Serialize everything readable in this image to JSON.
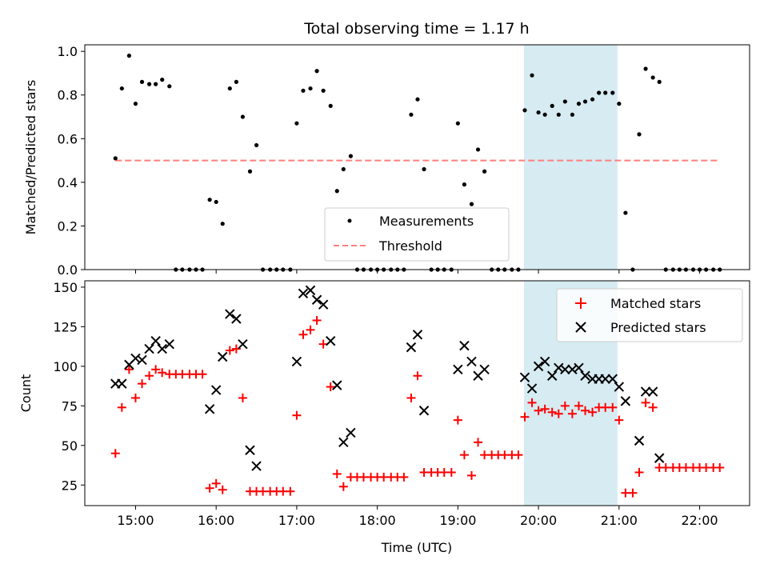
{
  "chart_data": {
    "title": "Total observing time = 1.17 h",
    "xlabel": "Time (UTC)",
    "x_ticks": [
      "15:00",
      "16:00",
      "17:00",
      "18:00",
      "19:00",
      "20:00",
      "21:00",
      "22:00"
    ],
    "x_tick_hours": [
      15,
      16,
      17,
      18,
      19,
      20,
      21,
      22
    ],
    "xlim": [
      14.37,
      22.62
    ],
    "highlight_span": {
      "start": 19.82,
      "end": 20.98,
      "color": "#add8e6"
    },
    "panels": [
      {
        "type": "scatter",
        "ylabel": "Matched/Predicted stars",
        "ylim": [
          0,
          1.03
        ],
        "y_ticks": [
          "0.0",
          "0.2",
          "0.4",
          "0.6",
          "0.8",
          "1.0"
        ],
        "y_tick_values": [
          0,
          0.2,
          0.4,
          0.6,
          0.8,
          1.0
        ],
        "legend": {
          "position": "lower-center",
          "entries": [
            "Measurements",
            "Threshold"
          ]
        },
        "series": [
          {
            "name": "Measurements",
            "marker": "dot",
            "color": "#000000",
            "x": [
              14.75,
              14.83,
              14.92,
              15.0,
              15.08,
              15.17,
              15.25,
              15.33,
              15.42,
              15.5,
              15.58,
              15.67,
              15.75,
              15.83,
              15.92,
              16.0,
              16.08,
              16.17,
              16.25,
              16.33,
              16.42,
              16.5,
              16.58,
              16.67,
              16.75,
              16.83,
              16.92,
              17.0,
              17.08,
              17.17,
              17.25,
              17.33,
              17.42,
              17.5,
              17.58,
              17.67,
              17.75,
              17.83,
              17.92,
              18.0,
              18.08,
              18.17,
              18.25,
              18.33,
              18.42,
              18.5,
              18.58,
              18.67,
              18.75,
              18.83,
              18.92,
              19.0,
              19.08,
              19.17,
              19.25,
              19.33,
              19.42,
              19.5,
              19.58,
              19.67,
              19.75,
              19.83,
              19.92,
              20.0,
              20.08,
              20.17,
              20.25,
              20.33,
              20.42,
              20.5,
              20.58,
              20.67,
              20.75,
              20.83,
              20.92,
              21.0,
              21.08,
              21.17,
              21.25,
              21.33,
              21.42,
              21.5,
              21.58,
              21.67,
              21.75,
              21.83,
              21.92,
              22.0,
              22.08,
              22.17,
              22.25
            ],
            "y": [
              0.51,
              0.83,
              0.98,
              0.76,
              0.86,
              0.85,
              0.85,
              0.87,
              0.84,
              0.0,
              0.0,
              0.0,
              0.0,
              0.0,
              0.32,
              0.31,
              0.21,
              0.83,
              0.86,
              0.7,
              0.45,
              0.57,
              0.0,
              0.0,
              0.0,
              0.0,
              0.0,
              0.67,
              0.82,
              0.83,
              0.91,
              0.82,
              0.75,
              0.36,
              0.46,
              0.52,
              0.0,
              0.0,
              0.0,
              0.0,
              0.0,
              0.0,
              0.0,
              0.0,
              0.71,
              0.78,
              0.46,
              0.0,
              0.0,
              0.0,
              0.0,
              0.67,
              0.39,
              0.3,
              0.55,
              0.45,
              0.0,
              0.0,
              0.0,
              0.0,
              0.0,
              0.73,
              0.89,
              0.72,
              0.71,
              0.75,
              0.71,
              0.77,
              0.71,
              0.76,
              0.77,
              0.78,
              0.81,
              0.81,
              0.81,
              0.76,
              0.26,
              0.0,
              0.62,
              0.92,
              0.88,
              0.86,
              0.0,
              0.0,
              0.0,
              0.0,
              0.0,
              0.0,
              0.0,
              0.0,
              0.0
            ]
          },
          {
            "name": "Threshold",
            "marker": "dashed-line",
            "color": "#ff7f7f",
            "x": [
              14.75,
              22.25
            ],
            "y": [
              0.5,
              0.5
            ]
          }
        ]
      },
      {
        "type": "scatter",
        "ylabel": "Count",
        "ylim": [
          12,
          154
        ],
        "y_ticks": [
          "25",
          "50",
          "75",
          "100",
          "125",
          "150"
        ],
        "y_tick_values": [
          25,
          50,
          75,
          100,
          125,
          150
        ],
        "legend": {
          "position": "top-right",
          "entries": [
            "Matched stars",
            "Predicted stars"
          ]
        },
        "series": [
          {
            "name": "Matched stars",
            "marker": "plus",
            "color": "#ff0000",
            "x": [
              14.75,
              14.83,
              14.92,
              15.0,
              15.08,
              15.17,
              15.25,
              15.33,
              15.42,
              15.5,
              15.58,
              15.67,
              15.75,
              15.83,
              15.92,
              16.0,
              16.08,
              16.17,
              16.25,
              16.33,
              16.42,
              16.5,
              16.58,
              16.67,
              16.75,
              16.83,
              16.92,
              17.0,
              17.08,
              17.17,
              17.25,
              17.33,
              17.42,
              17.5,
              17.58,
              17.67,
              17.75,
              17.83,
              17.92,
              18.0,
              18.08,
              18.17,
              18.25,
              18.33,
              18.42,
              18.5,
              18.58,
              18.67,
              18.75,
              18.83,
              18.92,
              19.0,
              19.08,
              19.17,
              19.25,
              19.33,
              19.42,
              19.5,
              19.58,
              19.67,
              19.75,
              19.83,
              19.92,
              20.0,
              20.08,
              20.17,
              20.25,
              20.33,
              20.42,
              20.5,
              20.58,
              20.67,
              20.75,
              20.83,
              20.92,
              21.0,
              21.08,
              21.17,
              21.25,
              21.33,
              21.42,
              21.5,
              21.58,
              21.67,
              21.75,
              21.83,
              21.92,
              22.0,
              22.08,
              22.17,
              22.25
            ],
            "y": [
              45,
              74,
              98,
              80,
              89,
              94,
              98,
              96,
              95,
              95,
              95,
              95,
              95,
              95,
              23,
              26,
              22,
              110,
              111,
              80,
              21,
              21,
              21,
              21,
              21,
              21,
              21,
              69,
              120,
              123,
              129,
              114,
              87,
              32,
              24,
              30,
              30,
              30,
              30,
              30,
              30,
              30,
              30,
              30,
              80,
              94,
              33,
              33,
              33,
              33,
              33,
              66,
              44,
              31,
              52,
              44,
              44,
              44,
              44,
              44,
              44,
              68,
              77,
              72,
              73,
              71,
              70,
              75,
              70,
              75,
              72,
              71,
              74,
              74,
              74,
              66,
              20,
              20,
              33,
              77,
              74,
              36,
              36,
              36,
              36,
              36,
              36,
              36,
              36,
              36,
              36
            ]
          },
          {
            "name": "Predicted stars",
            "marker": "cross",
            "color": "#000000",
            "x": [
              14.75,
              14.83,
              14.92,
              15.0,
              15.08,
              15.17,
              15.25,
              15.33,
              15.42,
              15.92,
              16.0,
              16.08,
              16.17,
              16.25,
              16.33,
              16.42,
              16.5,
              17.0,
              17.08,
              17.17,
              17.25,
              17.33,
              17.42,
              17.5,
              17.58,
              17.67,
              18.42,
              18.5,
              18.58,
              19.0,
              19.08,
              19.17,
              19.25,
              19.33,
              19.83,
              19.92,
              20.0,
              20.08,
              20.17,
              20.25,
              20.33,
              20.42,
              20.5,
              20.58,
              20.67,
              20.75,
              20.83,
              20.92,
              21.0,
              21.08,
              21.25,
              21.33,
              21.42,
              21.5
            ],
            "y": [
              89,
              89,
              101,
              105,
              104,
              111,
              116,
              111,
              114,
              73,
              85,
              106,
              133,
              130,
              114,
              47,
              37,
              103,
              146,
              148,
              142,
              139,
              116,
              88,
              52,
              58,
              112,
              120,
              72,
              98,
              113,
              103,
              94,
              98,
              93,
              86,
              100,
              103,
              94,
              99,
              98,
              98,
              99,
              94,
              92,
              92,
              92,
              92,
              87,
              78,
              53,
              84,
              84,
              42
            ]
          }
        ]
      }
    ]
  }
}
